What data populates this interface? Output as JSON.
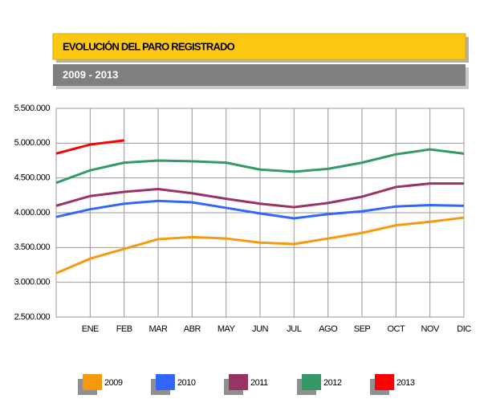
{
  "chart_data": {
    "type": "line",
    "title": "EVOLUCIÓN DEL PARO REGISTRADO",
    "subtitle": "2009 - 2013",
    "categories": [
      null,
      "ENE",
      "FEB",
      "MAR",
      "ABR",
      "MAY",
      "JUN",
      "JUL",
      "AGO",
      "SEP",
      "OCT",
      "NOV",
      "DIC"
    ],
    "series": [
      {
        "name": "2009",
        "color": "#f59a0f",
        "values": [
          3130000,
          3340000,
          3480000,
          3620000,
          3650000,
          3630000,
          3570000,
          3550000,
          3630000,
          3710000,
          3820000,
          3870000,
          3930000
        ]
      },
      {
        "name": "2010",
        "color": "#3366ff",
        "values": [
          3940000,
          4050000,
          4130000,
          4170000,
          4150000,
          4070000,
          3990000,
          3920000,
          3980000,
          4020000,
          4090000,
          4110000,
          4100000
        ]
      },
      {
        "name": "2011",
        "color": "#993366",
        "values": [
          4100000,
          4240000,
          4300000,
          4340000,
          4280000,
          4200000,
          4130000,
          4080000,
          4140000,
          4230000,
          4370000,
          4420000,
          4420000
        ]
      },
      {
        "name": "2012",
        "color": "#339966",
        "values": [
          4430000,
          4610000,
          4720000,
          4750000,
          4740000,
          4720000,
          4620000,
          4590000,
          4630000,
          4720000,
          4840000,
          4910000,
          4850000
        ]
      },
      {
        "name": "2013",
        "color": "#ff0000",
        "values": [
          4850000,
          4980000,
          5040000,
          null,
          null,
          null,
          null,
          null,
          null,
          null,
          null,
          null,
          null
        ]
      }
    ],
    "ylim": [
      2500000,
      5500000
    ],
    "yticks": [
      {
        "value": 2500000,
        "label": "2.500.000"
      },
      {
        "value": 3000000,
        "label": "3.000.000"
      },
      {
        "value": 3500000,
        "label": "3.500.000"
      },
      {
        "value": 4000000,
        "label": "4.000.000"
      },
      {
        "value": 4500000,
        "label": "4.500.000"
      },
      {
        "value": 5000000,
        "label": "5.000.000"
      },
      {
        "value": 5500000,
        "label": "5.500.000"
      }
    ],
    "grid": true,
    "legend": "bottom"
  }
}
